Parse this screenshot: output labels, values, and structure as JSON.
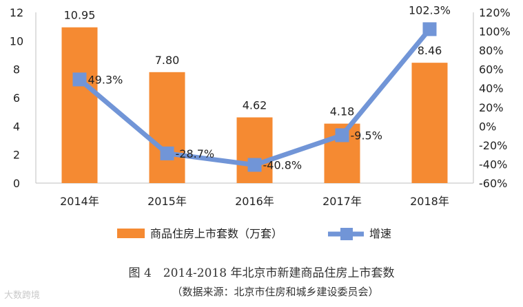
{
  "chart_data": {
    "type": "bar+line",
    "categories": [
      "2014年",
      "2015年",
      "2016年",
      "2017年",
      "2018年"
    ],
    "series": [
      {
        "name": "商品住房上市套数（万套）",
        "type": "bar",
        "axis": "left",
        "color": "#F58A32",
        "values": [
          10.95,
          7.8,
          4.62,
          4.18,
          8.46
        ],
        "labels": [
          "10.95",
          "7.80",
          "4.62",
          "4.18",
          "8.46"
        ]
      },
      {
        "name": "增速",
        "type": "line",
        "axis": "right",
        "color": "#7195D7",
        "values": [
          49.3,
          -28.7,
          -40.8,
          -9.5,
          102.3
        ],
        "labels": [
          "49.3%",
          "-28.7%",
          "-40.8%",
          "-9.5%",
          "102.3%"
        ]
      }
    ],
    "y_left": {
      "min": 0,
      "max": 12,
      "ticks": [
        "0",
        "2",
        "4",
        "6",
        "8",
        "10",
        "12"
      ]
    },
    "y_right": {
      "min": -60,
      "max": 120,
      "ticks": [
        "-60%",
        "-40%",
        "-20%",
        "0%",
        "20%",
        "40%",
        "60%",
        "80%",
        "100%",
        "120%"
      ]
    },
    "grid": false,
    "legend_position": "bottom"
  },
  "caption": {
    "title": "图 4　2014-2018 年北京市新建商品住房上市套数",
    "source": "（数据来源：北京市住房和城乡建设委员会）"
  },
  "watermark": "大数跨境"
}
